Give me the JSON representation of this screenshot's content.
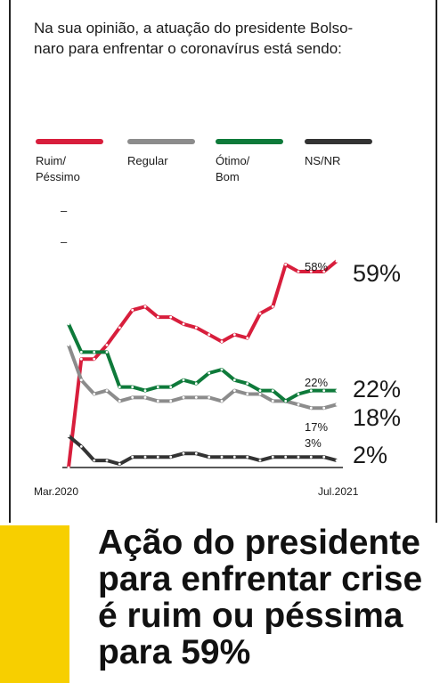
{
  "question": "Na sua opinião, a atuação do presidente Bolsonaro para enfrentar o coronavírus está sendo:",
  "question_line1": "Na sua opinião, a atuação do presidente Bolso-",
  "question_line2": "naro para enfrentar o coronavírus está sendo:",
  "legend": [
    {
      "label_line1": "Ruim/",
      "label_line2": "Péssimo",
      "color": "#d81e3c"
    },
    {
      "label_line1": "Regular",
      "label_line2": "",
      "color": "#8c8c8c"
    },
    {
      "label_line1": "Ótimo/",
      "label_line2": "Bom",
      "color": "#0e7a3a"
    },
    {
      "label_line1": "NS/NR",
      "label_line2": "",
      "color": "#333333"
    }
  ],
  "chart_data": {
    "type": "line",
    "x_start_label": "Mar.2020",
    "x_end_label": "Jul.2021",
    "ylim": [
      0,
      70
    ],
    "series": [
      {
        "name": "Ruim/Péssimo",
        "color": "#d81e3c",
        "values": [
          0,
          31,
          31,
          35,
          40,
          45,
          46,
          43,
          43,
          41,
          40,
          38,
          36,
          38,
          37,
          44,
          46,
          58,
          56,
          56,
          56,
          59
        ]
      },
      {
        "name": "Regular",
        "color": "#8c8c8c",
        "values": [
          35,
          25,
          21,
          22,
          19,
          20,
          20,
          19,
          19,
          20,
          20,
          20,
          19,
          22,
          21,
          21,
          19,
          19,
          18,
          17,
          17,
          18
        ]
      },
      {
        "name": "Ótimo/Bom",
        "color": "#0e7a3a",
        "values": [
          41,
          33,
          33,
          33,
          23,
          23,
          22,
          23,
          23,
          25,
          24,
          27,
          28,
          25,
          24,
          22,
          22,
          19,
          21,
          22,
          22,
          22
        ]
      },
      {
        "name": "NS/NR",
        "color": "#333333",
        "values": [
          9,
          6,
          2,
          2,
          1,
          3,
          3,
          3,
          3,
          4,
          4,
          3,
          3,
          3,
          3,
          2,
          3,
          3,
          3,
          3,
          3,
          2
        ]
      }
    ],
    "annotations": {
      "ruim_small": "58%",
      "ruim_big": "59%",
      "otimo_small": "22%",
      "otimo_big": "22%",
      "regular_small": "17%",
      "regular_big": "18%",
      "nsnr_small": "3%",
      "nsnr_big": "2%"
    }
  },
  "headline": [
    "Ação do presidente",
    "para enfrentar crise",
    "é ruim ou péssima",
    "para 59%"
  ]
}
